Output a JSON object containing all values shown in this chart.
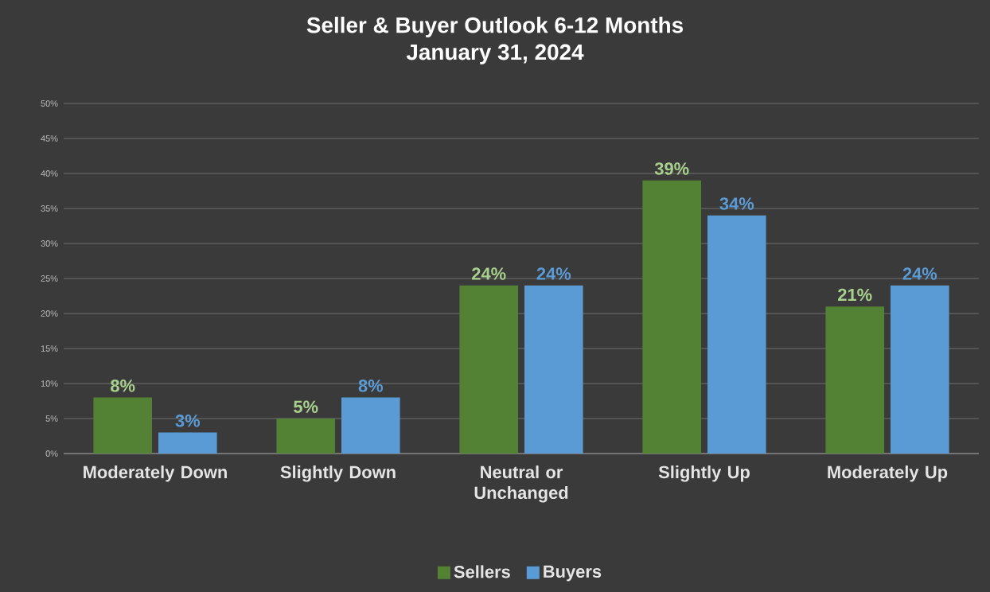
{
  "chart_data": {
    "type": "bar",
    "title": "Seller & Buyer Outlook 6-12 Months",
    "subtitle": "January 31, 2024",
    "categories": [
      "Moderately Down",
      "Slightly Down",
      "Neutral or Unchanged",
      "Slightly Up",
      "Moderately Up"
    ],
    "series": [
      {
        "name": "Sellers",
        "color": "#548235",
        "values": [
          8,
          5,
          24,
          39,
          21
        ],
        "value_labels": [
          "8%",
          "5%",
          "24%",
          "39%",
          "21%"
        ]
      },
      {
        "name": "Buyers",
        "color": "#5b9bd5",
        "values": [
          3,
          8,
          24,
          34,
          24
        ],
        "value_labels": [
          "3%",
          "8%",
          "24%",
          "34%",
          "24%"
        ]
      }
    ],
    "ylim": [
      0,
      50
    ],
    "yticks": [
      {
        "value": 0,
        "label": "0%"
      },
      {
        "value": 5,
        "label": "5%"
      },
      {
        "value": 10,
        "label": "10%"
      },
      {
        "value": 15,
        "label": "15%"
      },
      {
        "value": 20,
        "label": "20%"
      },
      {
        "value": 25,
        "label": "25%"
      },
      {
        "value": 30,
        "label": "30%"
      },
      {
        "value": 35,
        "label": "35%"
      },
      {
        "value": 40,
        "label": "40%"
      },
      {
        "value": 45,
        "label": "45%"
      },
      {
        "value": 50,
        "label": "50%"
      }
    ],
    "grid": "y",
    "legend": "bottom"
  }
}
